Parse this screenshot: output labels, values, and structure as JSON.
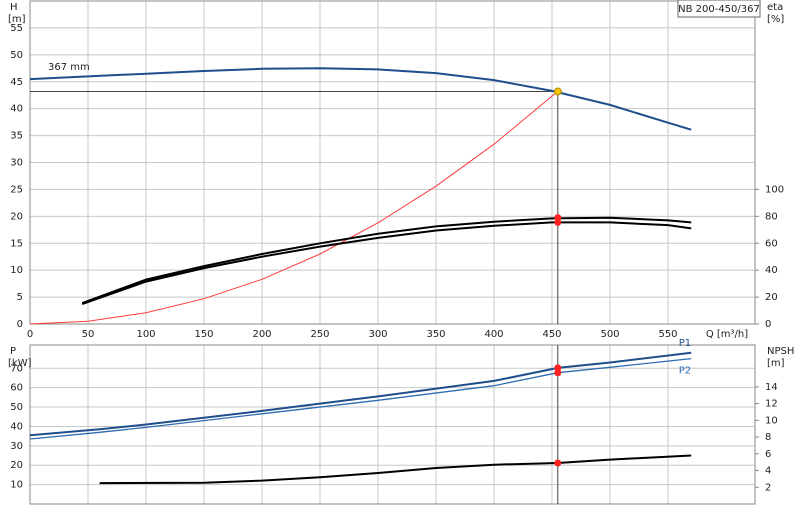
{
  "chart_data": [
    {
      "type": "line",
      "title": "NB 200-450/367",
      "ylabel": "H",
      "yunit": "[m]",
      "y2label": "eta",
      "y2unit": "[%]",
      "xlabel": "Q [m³/h]",
      "xlim": [
        0,
        625
      ],
      "xticks": [
        0,
        50,
        100,
        150,
        200,
        250,
        300,
        350,
        400,
        450,
        500,
        550
      ],
      "ylim": [
        0,
        60
      ],
      "yticks": [
        0,
        5,
        10,
        15,
        20,
        25,
        30,
        35,
        40,
        45,
        50,
        55
      ],
      "y2lim": [
        0,
        240
      ],
      "y2ticks": [
        0,
        20,
        40,
        60,
        80,
        100
      ],
      "grid": true,
      "series": [
        {
          "name": "367 mm",
          "color": "#1f4e8c",
          "x": [
            0,
            50,
            100,
            150,
            200,
            250,
            300,
            350,
            400,
            450,
            500,
            550,
            570
          ],
          "values": [
            45.5,
            46.0,
            46.5,
            47.0,
            47.4,
            47.5,
            47.3,
            46.6,
            45.3,
            43.3,
            40.7,
            37.4,
            36.1
          ]
        },
        {
          "color": "#ff3b3b",
          "x": [
            0,
            50,
            100,
            150,
            200,
            250,
            300,
            350,
            400,
            455
          ],
          "values": [
            0,
            0.5,
            2.1,
            4.7,
            8.3,
            13.0,
            18.8,
            25.6,
            33.4,
            43.2
          ]
        },
        {
          "color": "#000000",
          "axis": "y2",
          "x": [
            45,
            100,
            150,
            200,
            250,
            300,
            350,
            400,
            450,
            500,
            550,
            570
          ],
          "values": [
            15.5,
            33,
            43,
            52,
            60,
            67,
            72.5,
            76,
            78.5,
            79,
            77,
            75.5
          ]
        },
        {
          "color": "#000000",
          "axis": "y2",
          "x": [
            45,
            100,
            150,
            200,
            250,
            300,
            350,
            400,
            450,
            500,
            550,
            570
          ],
          "values": [
            14.8,
            31.5,
            41.5,
            50,
            57.5,
            64,
            69.5,
            73,
            75.5,
            75.5,
            73.5,
            71
          ]
        }
      ],
      "markers": [
        {
          "x": 455,
          "y": 43.2,
          "color": "#f5c400"
        },
        {
          "x": 455,
          "y": 79,
          "axis": "y2",
          "color": "#ff2020"
        },
        {
          "x": 455,
          "y": 75.5,
          "axis": "y2",
          "color": "#ff2020"
        }
      ]
    },
    {
      "type": "line",
      "ylabel": "P",
      "yunit": "[kW]",
      "y2label": "NPSH",
      "y2unit": "[m]",
      "xlim": [
        0,
        625
      ],
      "ylim": [
        0,
        82
      ],
      "yticks": [
        10,
        20,
        30,
        40,
        50,
        60,
        70
      ],
      "y2lim": [
        0,
        19
      ],
      "y2ticks": [
        2,
        4,
        6,
        8,
        10,
        12,
        14
      ],
      "grid": true,
      "series": [
        {
          "name": "P1",
          "color": "#1f4e8c",
          "x": [
            0,
            60,
            100,
            200,
            300,
            400,
            455,
            500,
            570
          ],
          "values": [
            35.5,
            38.5,
            41,
            48,
            55.5,
            63.5,
            70.2,
            73,
            78
          ]
        },
        {
          "name": "P2",
          "color": "#2f6cb0",
          "x": [
            0,
            60,
            100,
            200,
            300,
            400,
            455,
            500,
            570
          ],
          "values": [
            33.5,
            37,
            39.5,
            46.5,
            53.5,
            61,
            67.7,
            70.5,
            75
          ]
        },
        {
          "color": "#000000",
          "axis": "y2",
          "x": [
            60,
            150,
            200,
            250,
            300,
            350,
            400,
            455,
            500,
            570
          ],
          "values": [
            2.5,
            2.55,
            2.8,
            3.2,
            3.7,
            4.3,
            4.7,
            4.9,
            5.3,
            5.8
          ]
        }
      ],
      "markers": [
        {
          "x": 455,
          "y": 70.2,
          "color": "#ff2020"
        },
        {
          "x": 455,
          "y": 67.7,
          "color": "#ff2020"
        },
        {
          "x": 455,
          "y": 4.9,
          "axis": "y2",
          "color": "#ff2020"
        }
      ]
    }
  ]
}
